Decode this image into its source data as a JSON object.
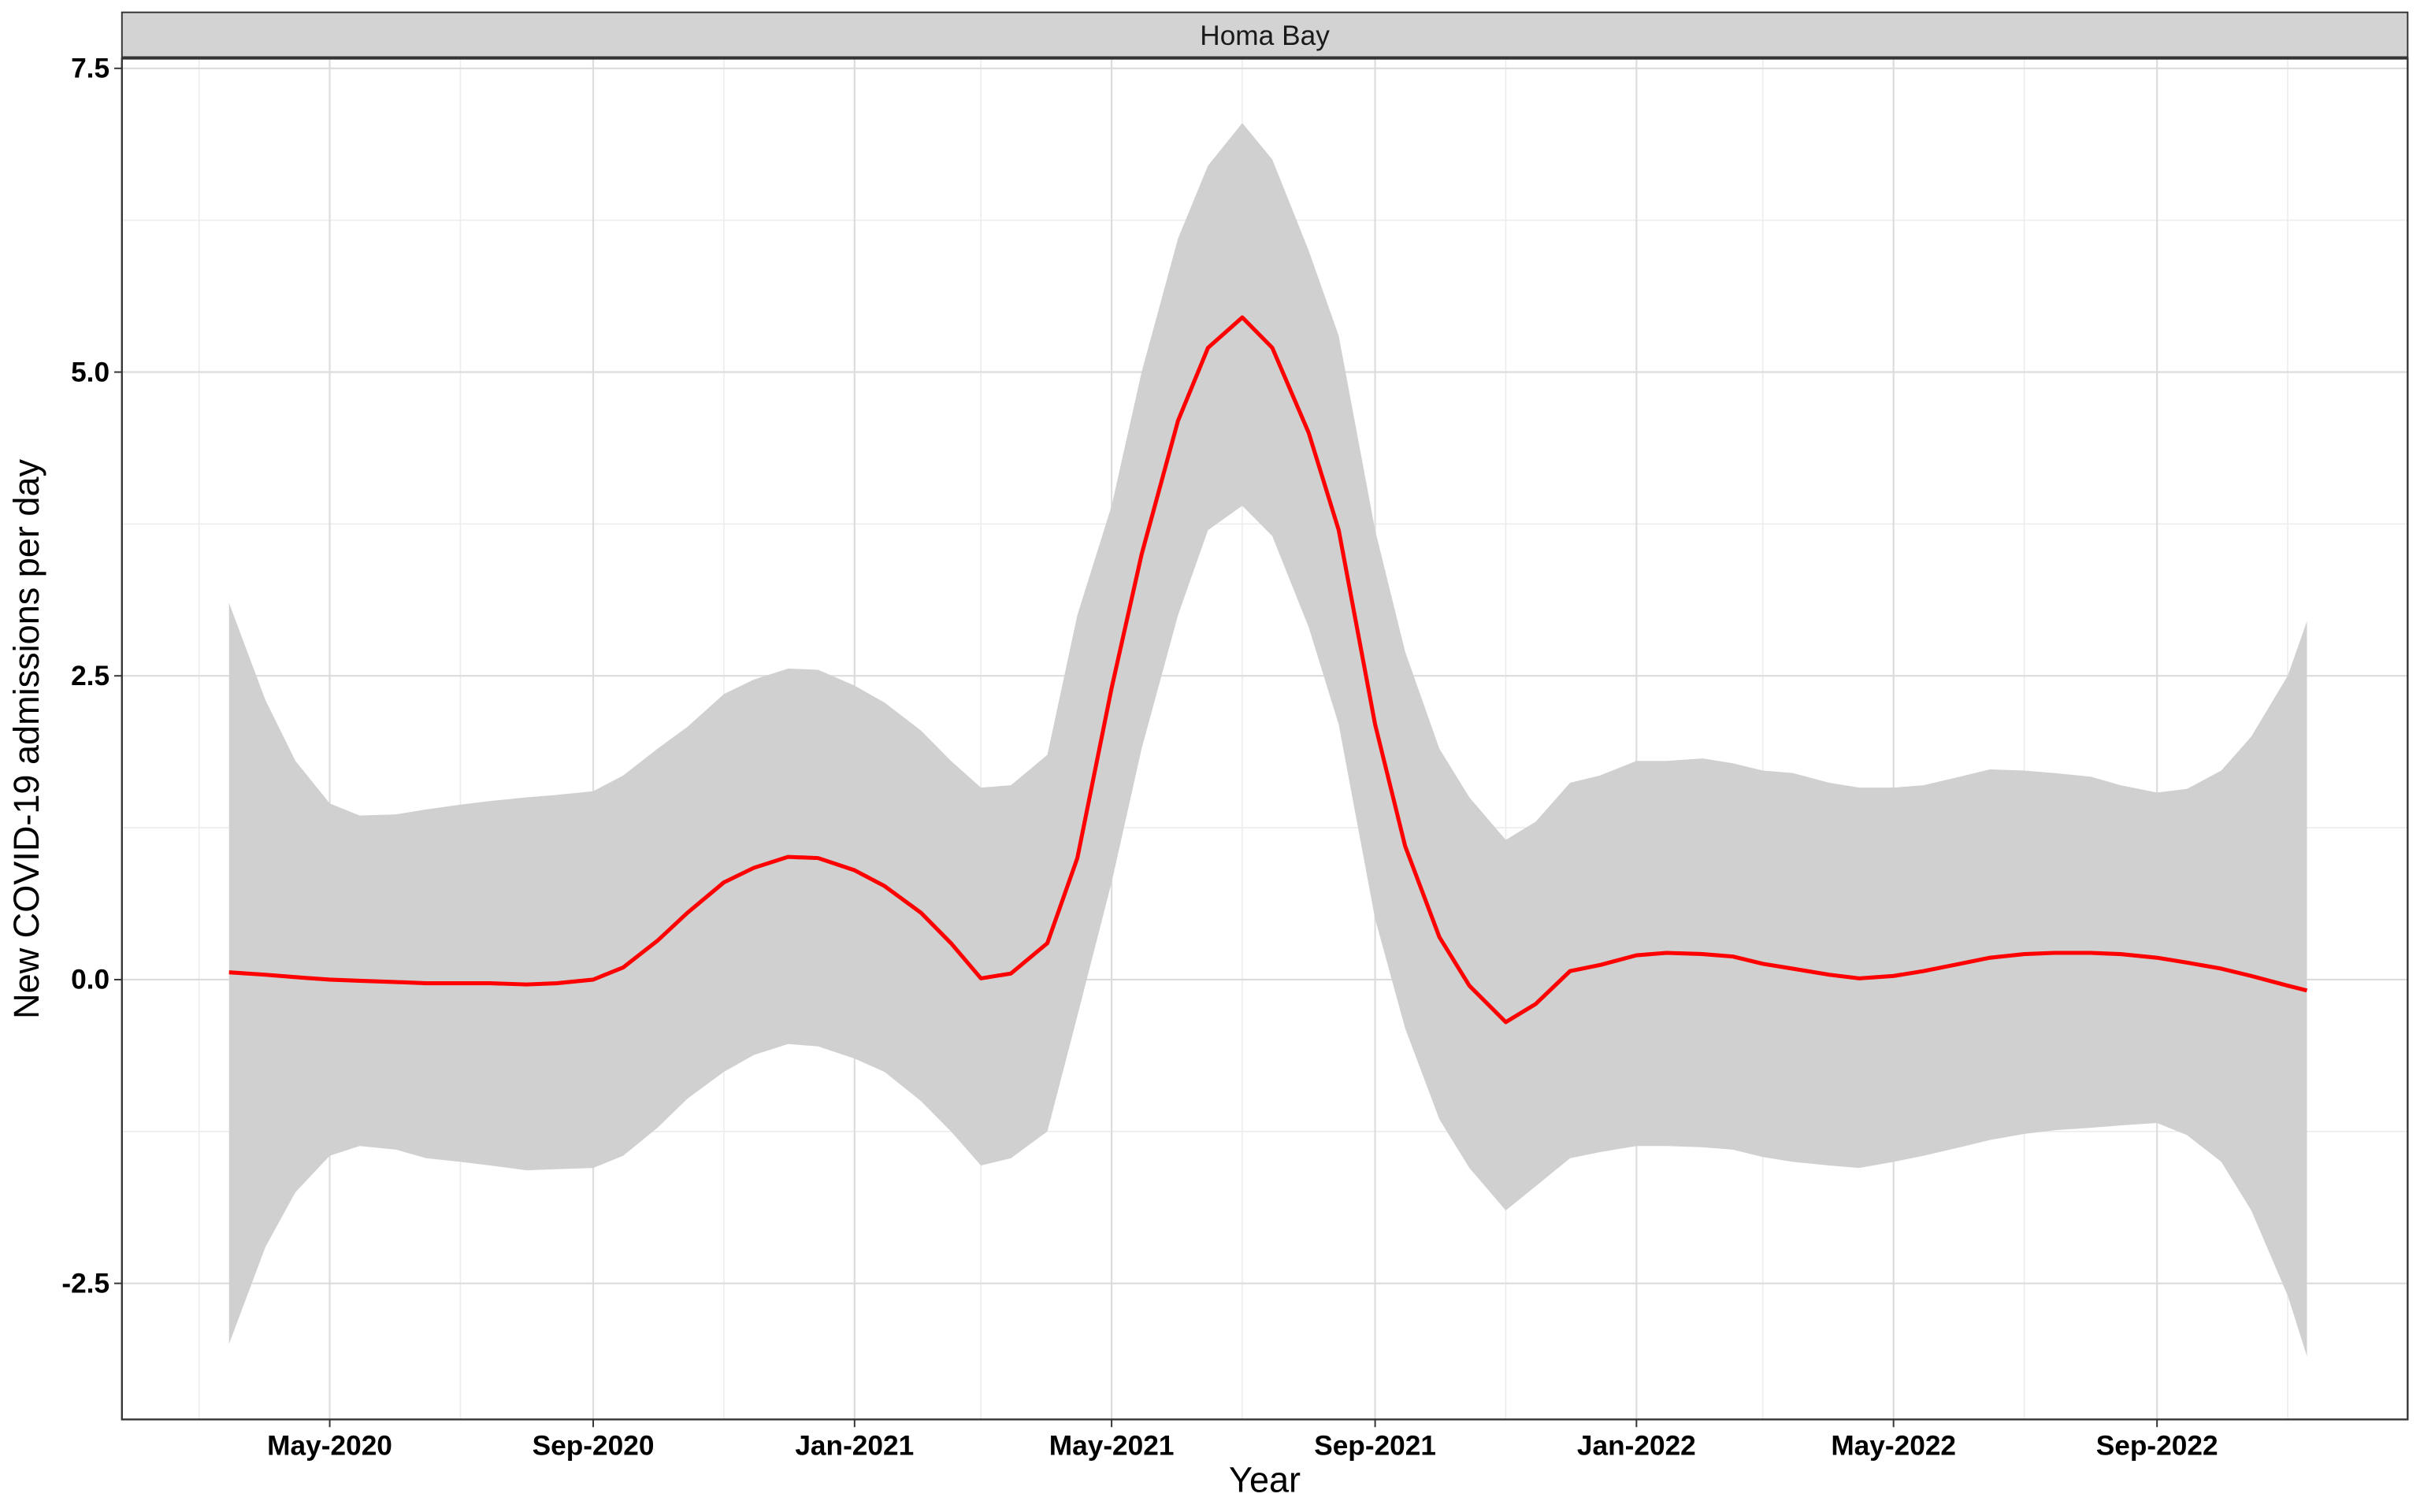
{
  "chart_data": {
    "type": "line",
    "strip_title": "Homa Bay",
    "x_label": "Year",
    "y_label": "New COVID-19 admissions per day",
    "x": [
      "2020-03-15",
      "2020-04-01",
      "2020-04-15",
      "2020-05-01",
      "2020-05-15",
      "2020-06-01",
      "2020-06-15",
      "2020-07-01",
      "2020-07-15",
      "2020-08-01",
      "2020-08-15",
      "2020-09-01",
      "2020-09-15",
      "2020-10-01",
      "2020-10-15",
      "2020-11-01",
      "2020-11-15",
      "2020-12-01",
      "2020-12-15",
      "2021-01-01",
      "2021-01-15",
      "2021-02-01",
      "2021-02-15",
      "2021-03-01",
      "2021-03-15",
      "2021-04-01",
      "2021-04-15",
      "2021-05-01",
      "2021-05-15",
      "2021-06-01",
      "2021-06-15",
      "2021-07-01",
      "2021-07-15",
      "2021-08-01",
      "2021-08-15",
      "2021-09-01",
      "2021-09-15",
      "2021-10-01",
      "2021-10-15",
      "2021-11-01",
      "2021-11-15",
      "2021-12-01",
      "2021-12-15",
      "2022-01-01",
      "2022-01-15",
      "2022-02-01",
      "2022-02-15",
      "2022-03-01",
      "2022-03-15",
      "2022-04-01",
      "2022-04-15",
      "2022-05-01",
      "2022-05-15",
      "2022-06-01",
      "2022-06-15",
      "2022-07-01",
      "2022-07-15",
      "2022-08-01",
      "2022-08-15",
      "2022-09-01",
      "2022-09-15",
      "2022-10-01",
      "2022-10-15",
      "2022-11-01",
      "2022-11-10"
    ],
    "series": [
      {
        "color": "#ff0000",
        "values": [
          0.06,
          0.04,
          0.02,
          0.0,
          -0.01,
          -0.02,
          -0.03,
          -0.03,
          -0.03,
          -0.04,
          -0.03,
          0.0,
          0.1,
          0.32,
          0.55,
          0.8,
          0.92,
          1.01,
          1.0,
          0.9,
          0.77,
          0.55,
          0.3,
          0.01,
          0.05,
          0.3,
          1.0,
          2.4,
          3.5,
          4.6,
          5.2,
          5.45,
          5.2,
          4.5,
          3.7,
          2.1,
          1.1,
          0.35,
          -0.05,
          -0.35,
          -0.2,
          0.07,
          0.12,
          0.2,
          0.22,
          0.21,
          0.19,
          0.13,
          0.09,
          0.04,
          0.01,
          0.03,
          0.07,
          0.13,
          0.18,
          0.21,
          0.22,
          0.22,
          0.21,
          0.18,
          0.14,
          0.09,
          0.03,
          -0.05,
          -0.09
        ]
      }
    ],
    "band": {
      "color": "#d0d0d0",
      "upper": [
        3.1,
        2.3,
        1.8,
        1.45,
        1.35,
        1.36,
        1.4,
        1.44,
        1.47,
        1.5,
        1.52,
        1.55,
        1.68,
        1.9,
        2.08,
        2.35,
        2.47,
        2.56,
        2.55,
        2.42,
        2.28,
        2.05,
        1.8,
        1.58,
        1.6,
        1.85,
        3.0,
        3.9,
        5.0,
        6.1,
        6.7,
        7.05,
        6.75,
        6.0,
        5.3,
        3.7,
        2.7,
        1.9,
        1.5,
        1.15,
        1.3,
        1.62,
        1.68,
        1.8,
        1.8,
        1.82,
        1.78,
        1.72,
        1.7,
        1.62,
        1.58,
        1.58,
        1.6,
        1.67,
        1.73,
        1.72,
        1.7,
        1.67,
        1.6,
        1.54,
        1.57,
        1.72,
        2.0,
        2.5,
        2.95
      ],
      "lower": [
        -3.0,
        -2.2,
        -1.75,
        -1.45,
        -1.37,
        -1.4,
        -1.47,
        -1.5,
        -1.53,
        -1.57,
        -1.56,
        -1.55,
        -1.45,
        -1.22,
        -0.98,
        -0.76,
        -0.62,
        -0.53,
        -0.55,
        -0.65,
        -0.76,
        -1.0,
        -1.25,
        -1.53,
        -1.47,
        -1.25,
        -0.3,
        0.8,
        1.9,
        3.0,
        3.7,
        3.9,
        3.65,
        2.9,
        2.1,
        0.5,
        -0.4,
        -1.15,
        -1.55,
        -1.9,
        -1.7,
        -1.47,
        -1.42,
        -1.37,
        -1.37,
        -1.38,
        -1.4,
        -1.46,
        -1.5,
        -1.53,
        -1.55,
        -1.5,
        -1.45,
        -1.38,
        -1.32,
        -1.27,
        -1.24,
        -1.22,
        -1.2,
        -1.18,
        -1.28,
        -1.5,
        -1.9,
        -2.6,
        -3.1
      ]
    },
    "xlim": [
      "2020-01-25",
      "2022-12-27"
    ],
    "xticks": [
      {
        "value": "2020-05-01",
        "label": "May-2020"
      },
      {
        "value": "2020-09-01",
        "label": "Sep-2020"
      },
      {
        "value": "2021-01-01",
        "label": "Jan-2021"
      },
      {
        "value": "2021-05-01",
        "label": "May-2021"
      },
      {
        "value": "2021-09-01",
        "label": "Sep-2021"
      },
      {
        "value": "2022-01-01",
        "label": "Jan-2022"
      },
      {
        "value": "2022-05-01",
        "label": "May-2022"
      },
      {
        "value": "2022-09-01",
        "label": "Sep-2022"
      }
    ],
    "x_minor_grid": [
      "2020-03-01",
      "2020-07-01",
      "2020-11-01",
      "2021-03-01",
      "2021-07-01",
      "2021-11-01",
      "2022-03-01",
      "2022-07-01",
      "2022-11-01"
    ],
    "ylim": [
      -3.62,
      7.58
    ],
    "yticks": [
      {
        "value": -2.5,
        "label": "-2.5"
      },
      {
        "value": 0,
        "label": "0.0"
      },
      {
        "value": 2.5,
        "label": "2.5"
      },
      {
        "value": 5,
        "label": "5.0"
      },
      {
        "value": 7.5,
        "label": "7.5"
      }
    ],
    "y_minor_grid": [
      -1.25,
      1.25,
      3.75,
      6.25
    ],
    "grid": true
  }
}
